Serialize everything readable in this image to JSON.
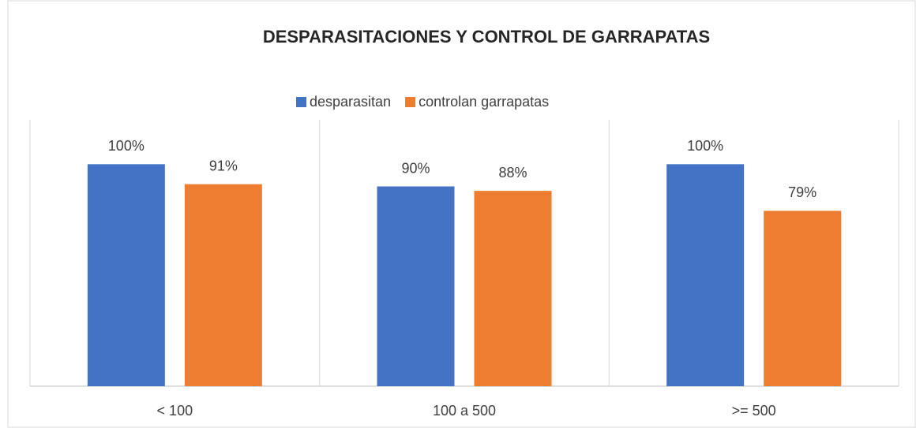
{
  "chart_data": {
    "type": "bar",
    "title": "DESPARASITACIONES Y CONTROL DE GARRAPATAS",
    "categories": [
      "< 100",
      "100 a 500",
      ">= 500"
    ],
    "series": [
      {
        "name": "desparasitan",
        "color": "#4472c4",
        "values": [
          100,
          90,
          100
        ],
        "value_labels": [
          "100%",
          "90%",
          "100%"
        ]
      },
      {
        "name": "controlan garrapatas",
        "color": "#ed7d31",
        "values": [
          91,
          88,
          79
        ],
        "value_labels": [
          "91%",
          "88%",
          "79%"
        ]
      }
    ],
    "ylim": [
      0,
      120
    ],
    "legend": "top"
  }
}
